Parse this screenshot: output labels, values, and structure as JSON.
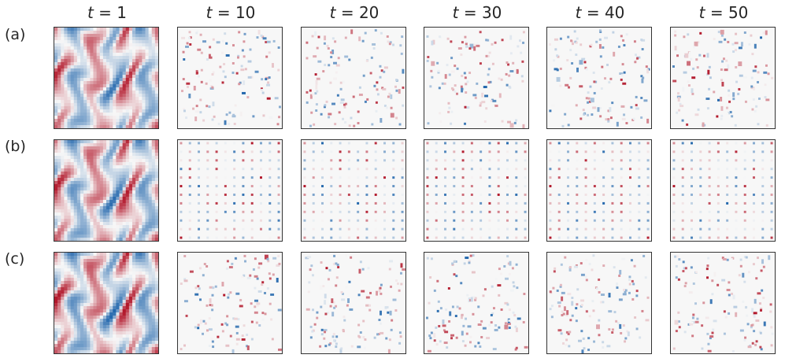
{
  "column_titles": [
    {
      "var": "t",
      "eq": "=",
      "value": "1"
    },
    {
      "var": "t",
      "eq": "=",
      "value": "10"
    },
    {
      "var": "t",
      "eq": "=",
      "value": "20"
    },
    {
      "var": "t",
      "eq": "=",
      "value": "30"
    },
    {
      "var": "t",
      "eq": "=",
      "value": "40"
    },
    {
      "var": "t",
      "eq": "=",
      "value": "50"
    }
  ],
  "row_labels": [
    "(a)",
    "(b)",
    "(c)"
  ],
  "colormap": {
    "negative": "#2166ac",
    "neutral": "#f7f7f7",
    "positive": "#b2182b"
  },
  "panel_types": {
    "first_column": "continuous field (full observation)",
    "other_columns_rows_a_c": "sparse random points",
    "other_columns_row_b": "sparse regular grid points"
  }
}
